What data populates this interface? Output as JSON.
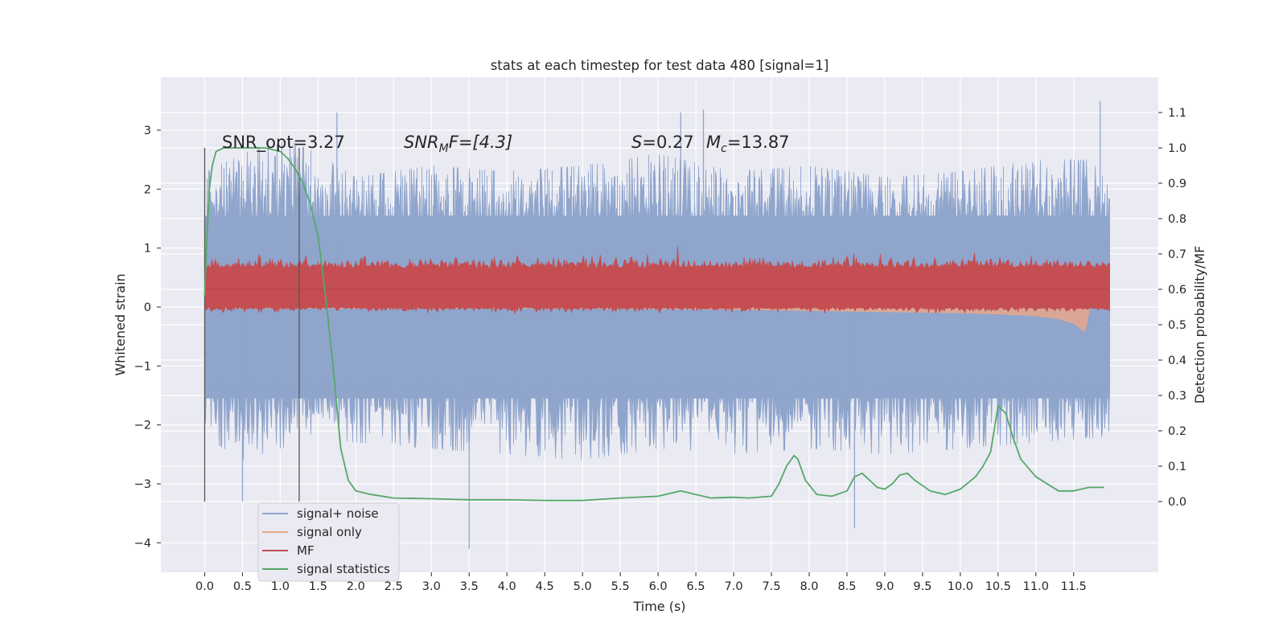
{
  "chart_data": {
    "type": "line",
    "title": "stats at each timestep for test data 480 [signal=1]",
    "xlabel": "Time (s)",
    "ylabel_left": "Whitened strain",
    "ylabel_right": "Detection probability/MF",
    "xlim": [
      -0.58,
      12.62
    ],
    "ylim_left": [
      -4.5,
      3.9
    ],
    "ylim_right": [
      -0.2,
      1.2
    ],
    "x_ticks": [
      "0.0",
      "0.5",
      "1.0",
      "1.5",
      "2.0",
      "2.5",
      "3.0",
      "3.5",
      "4.0",
      "4.5",
      "5.0",
      "5.5",
      "6.0",
      "6.5",
      "7.0",
      "7.5",
      "8.0",
      "8.5",
      "9.0",
      "9.5",
      "10.0",
      "10.5",
      "11.0",
      "11.5"
    ],
    "y_ticks_left": [
      "3",
      "2",
      "1",
      "0",
      "−1",
      "−2",
      "−3",
      "−4"
    ],
    "y_ticks_right": [
      "1.1",
      "1.0",
      "0.9",
      "0.8",
      "0.7",
      "0.6",
      "0.5",
      "0.4",
      "0.3",
      "0.2",
      "0.1",
      "0.0"
    ],
    "grid": true,
    "legend_position": "bottom-left",
    "annotations": {
      "snr_opt": "SNR_opt=3.27",
      "snr_mf_name": "SNR",
      "snr_mf_sub": "M",
      "snr_mf_rest": "F=[4.3]",
      "s_name": "S",
      "s_rest": "=0.27",
      "mc_name": "M",
      "mc_sub": "c",
      "mc_rest": "=13.87"
    },
    "vlines": [
      0.0,
      1.25
    ],
    "series": [
      {
        "name": "signal+ noise",
        "color": "#8fa5cc",
        "axis": "left",
        "x_range": [
          0.0,
          11.98
        ],
        "envelope_upper": [
          [
            0.0,
            2.3
          ],
          [
            0.5,
            2.6
          ],
          [
            1.0,
            2.9
          ],
          [
            1.5,
            2.6
          ],
          [
            2.0,
            2.2
          ],
          [
            3.0,
            2.4
          ],
          [
            4.0,
            2.3
          ],
          [
            5.0,
            2.4
          ],
          [
            6.0,
            2.6
          ],
          [
            7.0,
            2.3
          ],
          [
            8.0,
            2.4
          ],
          [
            9.0,
            2.2
          ],
          [
            10.0,
            2.3
          ],
          [
            11.0,
            2.5
          ],
          [
            11.98,
            2.5
          ]
        ],
        "envelope_lower": [
          [
            0.0,
            -2.2
          ],
          [
            0.5,
            -2.6
          ],
          [
            1.0,
            -2.4
          ],
          [
            1.5,
            -2.2
          ],
          [
            2.0,
            -2.3
          ],
          [
            3.0,
            -2.4
          ],
          [
            4.0,
            -2.5
          ],
          [
            5.0,
            -2.6
          ],
          [
            6.0,
            -2.4
          ],
          [
            7.0,
            -2.5
          ],
          [
            8.0,
            -2.4
          ],
          [
            9.0,
            -2.5
          ],
          [
            10.0,
            -2.4
          ],
          [
            11.0,
            -2.3
          ],
          [
            11.98,
            -2.2
          ]
        ],
        "spikes": [
          [
            0.5,
            -3.3
          ],
          [
            1.75,
            3.3
          ],
          [
            3.5,
            -4.1
          ],
          [
            6.6,
            3.35
          ],
          [
            6.3,
            3.3
          ],
          [
            8.6,
            -3.75
          ],
          [
            11.85,
            3.5
          ]
        ]
      },
      {
        "name": "signal only",
        "color": "#e8a78c",
        "axis": "left",
        "x": [
          0.0,
          1.0,
          2.0,
          3.0,
          4.0,
          5.0,
          6.0,
          7.0,
          8.0,
          9.0,
          10.0,
          10.5,
          11.0,
          11.3,
          11.5,
          11.65,
          11.7
        ],
        "upper": [
          0.05,
          0.05,
          0.05,
          0.05,
          0.05,
          0.05,
          0.05,
          0.05,
          0.06,
          0.08,
          0.12,
          0.15,
          0.2,
          0.28,
          0.36,
          0.3,
          0.1
        ],
        "lower": [
          -0.02,
          -0.02,
          -0.02,
          -0.02,
          -0.02,
          -0.02,
          -0.03,
          -0.04,
          -0.06,
          -0.08,
          -0.1,
          -0.12,
          -0.15,
          -0.2,
          -0.28,
          -0.42,
          -0.1
        ]
      },
      {
        "name": "MF",
        "color": "#c44e52",
        "axis": "right",
        "x_range": [
          0.0,
          11.98
        ],
        "baseline": 0.6,
        "band": [
          0.55,
          0.66
        ]
      },
      {
        "name": "signal statistics",
        "color": "#55a868",
        "axis": "right",
        "x": [
          0.0,
          0.03,
          0.06,
          0.1,
          0.15,
          0.25,
          0.5,
          0.8,
          1.0,
          1.1,
          1.2,
          1.3,
          1.4,
          1.5,
          1.6,
          1.7,
          1.8,
          1.9,
          2.0,
          2.2,
          2.5,
          3.0,
          3.5,
          4.0,
          4.5,
          5.0,
          5.5,
          6.0,
          6.3,
          6.5,
          6.7,
          7.0,
          7.2,
          7.5,
          7.6,
          7.7,
          7.8,
          7.85,
          7.95,
          8.1,
          8.3,
          8.5,
          8.6,
          8.7,
          8.8,
          8.9,
          9.0,
          9.1,
          9.2,
          9.3,
          9.4,
          9.6,
          9.8,
          10.0,
          10.2,
          10.3,
          10.4,
          10.5,
          10.6,
          10.7,
          10.8,
          11.0,
          11.3,
          11.5,
          11.7,
          11.9
        ],
        "y": [
          0.58,
          0.75,
          0.88,
          0.95,
          0.99,
          1.0,
          1.0,
          1.0,
          0.99,
          0.97,
          0.94,
          0.9,
          0.84,
          0.75,
          0.58,
          0.38,
          0.15,
          0.06,
          0.03,
          0.02,
          0.01,
          0.008,
          0.005,
          0.005,
          0.003,
          0.003,
          0.01,
          0.015,
          0.03,
          0.02,
          0.01,
          0.012,
          0.01,
          0.015,
          0.05,
          0.1,
          0.13,
          0.12,
          0.06,
          0.02,
          0.015,
          0.03,
          0.07,
          0.08,
          0.06,
          0.04,
          0.035,
          0.05,
          0.075,
          0.08,
          0.06,
          0.03,
          0.02,
          0.035,
          0.07,
          0.1,
          0.14,
          0.27,
          0.25,
          0.18,
          0.12,
          0.07,
          0.03,
          0.03,
          0.04,
          0.04
        ]
      }
    ]
  }
}
